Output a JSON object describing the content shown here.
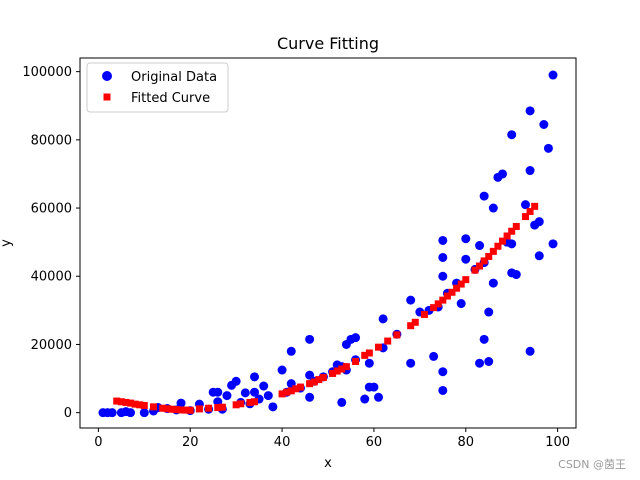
{
  "chart_data": {
    "type": "scatter",
    "title": "Curve Fitting",
    "xlabel": "x",
    "ylabel": "y",
    "xlim": [
      -4,
      104
    ],
    "ylim": [
      -4500,
      104000
    ],
    "x_ticks": [
      0,
      20,
      40,
      60,
      80,
      100
    ],
    "y_ticks": [
      0,
      20000,
      40000,
      60000,
      80000,
      100000
    ],
    "grid": false,
    "legend_position": "top-left",
    "series": [
      {
        "name": "Original Data",
        "marker": "circle",
        "color": "#0000ff",
        "points": [
          [
            1,
            0
          ],
          [
            2,
            0
          ],
          [
            3,
            0
          ],
          [
            5,
            0
          ],
          [
            6,
            300
          ],
          [
            7,
            0
          ],
          [
            10,
            0
          ],
          [
            12,
            500
          ],
          [
            13,
            1500
          ],
          [
            15,
            1200
          ],
          [
            17,
            800
          ],
          [
            18,
            2800
          ],
          [
            20,
            600
          ],
          [
            22,
            2500
          ],
          [
            24,
            1000
          ],
          [
            25,
            6000
          ],
          [
            26,
            6000
          ],
          [
            26,
            3200
          ],
          [
            27,
            1000
          ],
          [
            28,
            5000
          ],
          [
            29,
            8000
          ],
          [
            30,
            9200
          ],
          [
            31,
            3000
          ],
          [
            32,
            5800
          ],
          [
            33,
            2600
          ],
          [
            34,
            10500
          ],
          [
            34,
            6000
          ],
          [
            35,
            4000
          ],
          [
            36,
            7800
          ],
          [
            37,
            5000
          ],
          [
            38,
            1700
          ],
          [
            40,
            12500
          ],
          [
            41,
            6000
          ],
          [
            42,
            18000
          ],
          [
            42,
            8500
          ],
          [
            44,
            7200
          ],
          [
            46,
            21500
          ],
          [
            46,
            11000
          ],
          [
            46,
            4500
          ],
          [
            47,
            9200
          ],
          [
            49,
            10500
          ],
          [
            51,
            12000
          ],
          [
            52,
            14000
          ],
          [
            53,
            13500
          ],
          [
            53,
            3000
          ],
          [
            54,
            20000
          ],
          [
            54,
            12500
          ],
          [
            55,
            21500
          ],
          [
            56,
            22000
          ],
          [
            56,
            15500
          ],
          [
            58,
            4000
          ],
          [
            59,
            14500
          ],
          [
            59,
            7500
          ],
          [
            60,
            7500
          ],
          [
            61,
            4500
          ],
          [
            62,
            27500
          ],
          [
            62,
            19000
          ],
          [
            65,
            23000
          ],
          [
            68,
            33000
          ],
          [
            68,
            14500
          ],
          [
            70,
            29500
          ],
          [
            72,
            30000
          ],
          [
            73,
            16500
          ],
          [
            74,
            31000
          ],
          [
            75,
            50500
          ],
          [
            75,
            45500
          ],
          [
            75,
            40000
          ],
          [
            75,
            12000
          ],
          [
            75,
            6500
          ],
          [
            76,
            35000
          ],
          [
            78,
            38000
          ],
          [
            79,
            32000
          ],
          [
            80,
            51000
          ],
          [
            80,
            45000
          ],
          [
            82,
            42000
          ],
          [
            83,
            49000
          ],
          [
            83,
            14500
          ],
          [
            84,
            63500
          ],
          [
            84,
            44000
          ],
          [
            84,
            21500
          ],
          [
            85,
            29500
          ],
          [
            85,
            15000
          ],
          [
            86,
            60000
          ],
          [
            86,
            38000
          ],
          [
            87,
            69000
          ],
          [
            88,
            70000
          ],
          [
            89,
            50000
          ],
          [
            90,
            81500
          ],
          [
            90,
            49500
          ],
          [
            90,
            41000
          ],
          [
            91,
            40500
          ],
          [
            93,
            61000
          ],
          [
            94,
            88500
          ],
          [
            94,
            71000
          ],
          [
            94,
            18000
          ],
          [
            95,
            55000
          ],
          [
            96,
            46000
          ],
          [
            96,
            56000
          ],
          [
            97,
            84500
          ],
          [
            98,
            77500
          ],
          [
            99,
            99000
          ],
          [
            99,
            49500
          ]
        ]
      },
      {
        "name": "Fitted Curve",
        "marker": "square",
        "color": "#ff0000",
        "points": [
          [
            4,
            3400
          ],
          [
            5,
            3200
          ],
          [
            6,
            3000
          ],
          [
            7,
            2800
          ],
          [
            8,
            2500
          ],
          [
            9,
            2300
          ],
          [
            10,
            2100
          ],
          [
            12,
            1700
          ],
          [
            14,
            1300
          ],
          [
            15,
            1150
          ],
          [
            16,
            1000
          ],
          [
            17,
            900
          ],
          [
            18,
            800
          ],
          [
            19,
            750
          ],
          [
            20,
            700
          ],
          [
            22,
            1100
          ],
          [
            24,
            1300
          ],
          [
            26,
            1500
          ],
          [
            27,
            1600
          ],
          [
            30,
            2300
          ],
          [
            31,
            2600
          ],
          [
            33,
            3000
          ],
          [
            34,
            3200
          ],
          [
            40,
            5500
          ],
          [
            41,
            6000
          ],
          [
            42,
            6400
          ],
          [
            43,
            7000
          ],
          [
            44,
            7500
          ],
          [
            46,
            8500
          ],
          [
            47,
            9000
          ],
          [
            48,
            9700
          ],
          [
            49,
            10300
          ],
          [
            51,
            11500
          ],
          [
            52,
            12200
          ],
          [
            53,
            12800
          ],
          [
            54,
            13500
          ],
          [
            56,
            15000
          ],
          [
            58,
            16800
          ],
          [
            59,
            17500
          ],
          [
            61,
            19200
          ],
          [
            63,
            21000
          ],
          [
            65,
            22800
          ],
          [
            68,
            25500
          ],
          [
            69,
            26500
          ],
          [
            71,
            28800
          ],
          [
            73,
            30800
          ],
          [
            74,
            31900
          ],
          [
            75,
            33000
          ],
          [
            76,
            34200
          ],
          [
            77,
            35300
          ],
          [
            78,
            36500
          ],
          [
            79,
            37700
          ],
          [
            80,
            39000
          ],
          [
            82,
            41800
          ],
          [
            83,
            43000
          ],
          [
            84,
            44500
          ],
          [
            85,
            45800
          ],
          [
            86,
            47300
          ],
          [
            87,
            48800
          ],
          [
            88,
            50300
          ],
          [
            89,
            51800
          ],
          [
            90,
            53200
          ],
          [
            91,
            54600
          ],
          [
            93,
            57500
          ],
          [
            94,
            59000
          ],
          [
            95,
            60500
          ]
        ]
      }
    ]
  },
  "watermark": "CSDN @茵王"
}
